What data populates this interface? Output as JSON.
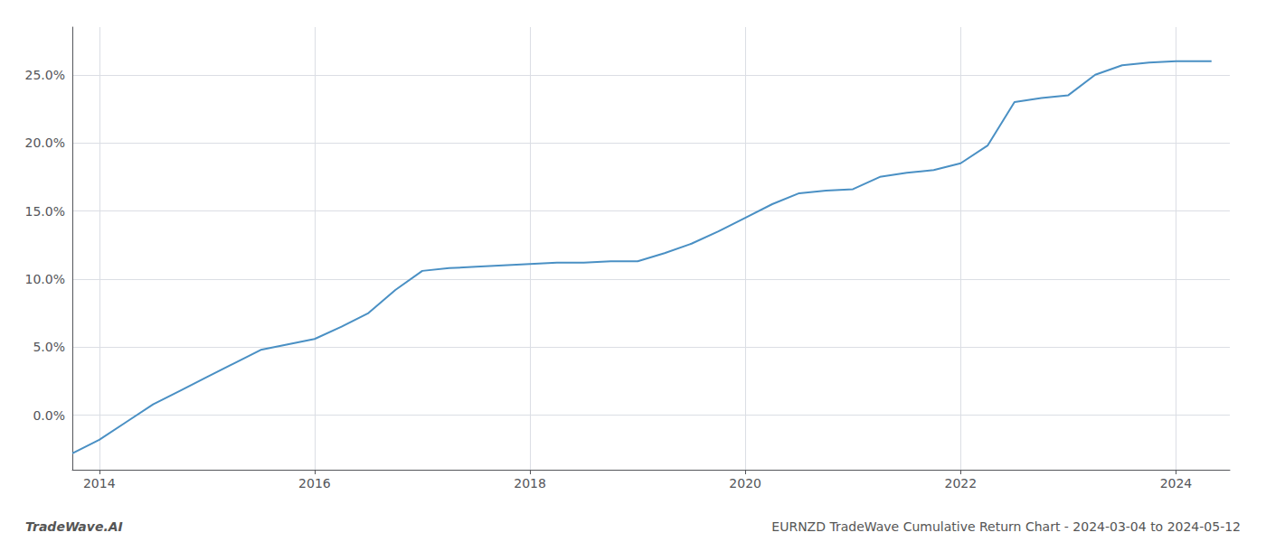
{
  "chart_data": {
    "type": "line",
    "x": [
      2013.75,
      2014.0,
      2014.25,
      2014.5,
      2014.75,
      2015.0,
      2015.25,
      2015.5,
      2015.75,
      2016.0,
      2016.25,
      2016.5,
      2016.75,
      2017.0,
      2017.25,
      2017.5,
      2017.75,
      2018.0,
      2018.25,
      2018.5,
      2018.75,
      2019.0,
      2019.25,
      2019.5,
      2019.75,
      2020.0,
      2020.25,
      2020.5,
      2020.75,
      2021.0,
      2021.25,
      2021.5,
      2021.75,
      2022.0,
      2022.25,
      2022.5,
      2022.75,
      2023.0,
      2023.25,
      2023.5,
      2023.75,
      2024.0,
      2024.33
    ],
    "values": [
      -0.028,
      -0.018,
      -0.005,
      0.008,
      0.018,
      0.028,
      0.038,
      0.048,
      0.052,
      0.056,
      0.065,
      0.075,
      0.092,
      0.106,
      0.108,
      0.109,
      0.11,
      0.111,
      0.112,
      0.112,
      0.113,
      0.113,
      0.119,
      0.126,
      0.135,
      0.145,
      0.155,
      0.163,
      0.165,
      0.166,
      0.175,
      0.178,
      0.18,
      0.185,
      0.198,
      0.23,
      0.233,
      0.235,
      0.25,
      0.257,
      0.259,
      0.26,
      0.26
    ],
    "color": "#4a90c4",
    "xlim": [
      2013.75,
      2024.5
    ],
    "ylim": [
      -0.04,
      0.285
    ],
    "xticks": [
      2014,
      2016,
      2018,
      2020,
      2022,
      2024
    ],
    "yticks": [
      {
        "value": 0.0,
        "label": "0.0%"
      },
      {
        "value": 0.05,
        "label": "5.0%"
      },
      {
        "value": 0.1,
        "label": "10.0%"
      },
      {
        "value": 0.15,
        "label": "15.0%"
      },
      {
        "value": 0.2,
        "label": "20.0%"
      },
      {
        "value": 0.25,
        "label": "25.0%"
      }
    ],
    "grid": true,
    "annotations": [
      "TradeWave.AI",
      "EURNZD TradeWave Cumulative Return Chart - 2024-03-04 to 2024-05-12"
    ]
  }
}
